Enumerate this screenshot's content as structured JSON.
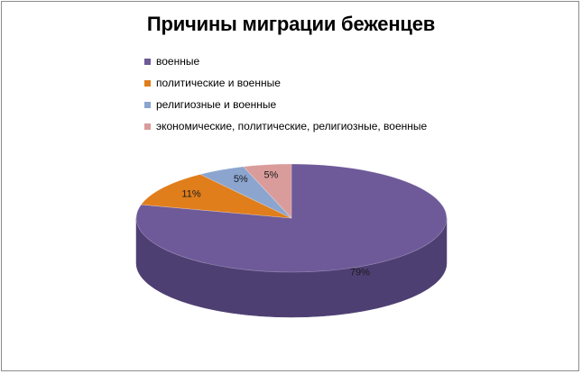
{
  "chart_data": {
    "type": "pie",
    "title": "Причины миграции беженцев",
    "categories": [
      "военные",
      "политические и военные",
      "религиозные и военные",
      "экономические, политические, религиозные, военные"
    ],
    "values": [
      79,
      11,
      5,
      5
    ],
    "data_labels": [
      "79%",
      "11%",
      "5%",
      "5%"
    ],
    "colors": [
      "#6e5a99",
      "#e07e1c",
      "#8ba5cf",
      "#d99c9b"
    ],
    "side_colors": [
      "#4e3f73",
      "#a85e14",
      "#6881a8",
      "#a87474"
    ],
    "legend_position": "top-left",
    "style": "3d"
  }
}
